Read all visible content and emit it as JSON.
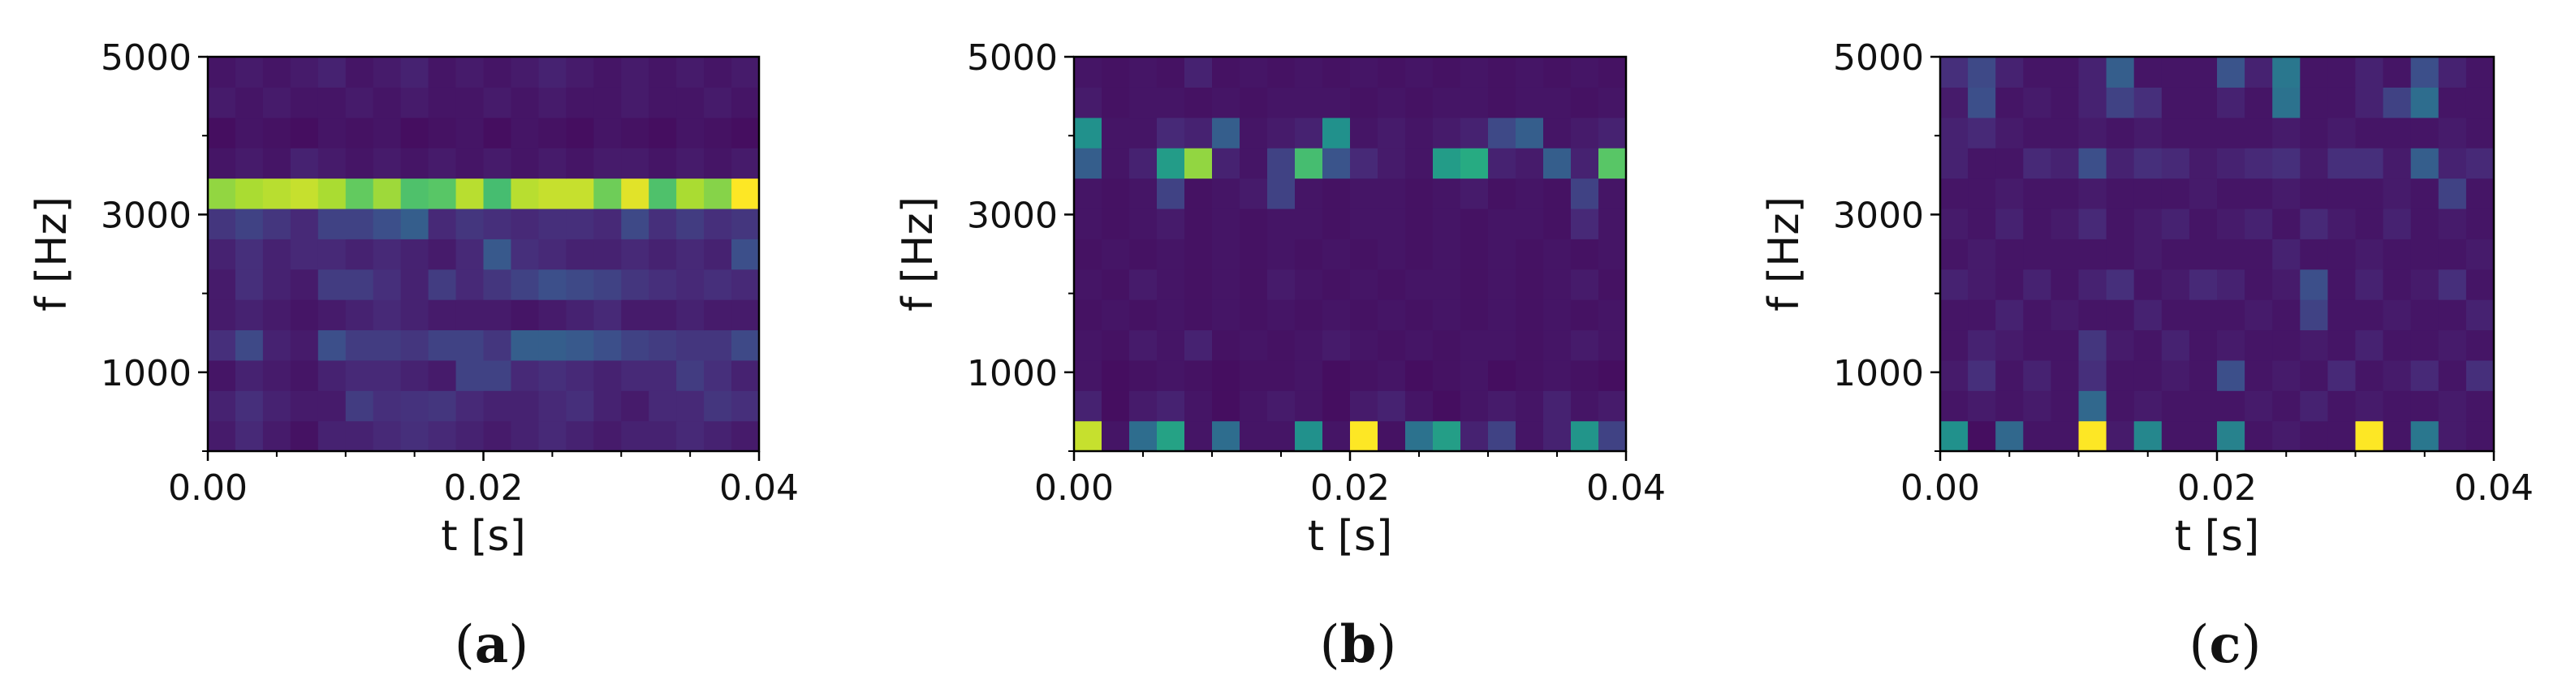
{
  "chart_data": [
    {
      "type": "heatmap",
      "caption": "a",
      "xlabel": "t [s]",
      "ylabel": "f [Hz]",
      "xlim": [
        0.0,
        0.04
      ],
      "ylim": [
        0,
        5000
      ],
      "xticks": [
        "0.00",
        "0.02",
        "0.04"
      ],
      "yticks": [
        "1000",
        "3000",
        "5000"
      ],
      "colormap": "viridis",
      "rows_low_to_high_freq": [
        [
          0.08,
          0.12,
          0.08,
          0.05,
          0.1,
          0.1,
          0.12,
          0.14,
          0.12,
          0.1,
          0.08,
          0.1,
          0.12,
          0.1,
          0.08,
          0.1,
          0.1,
          0.12,
          0.1,
          0.08
        ],
        [
          0.1,
          0.14,
          0.1,
          0.08,
          0.08,
          0.18,
          0.14,
          0.15,
          0.16,
          0.12,
          0.1,
          0.1,
          0.12,
          0.14,
          0.1,
          0.08,
          0.12,
          0.12,
          0.16,
          0.14
        ],
        [
          0.06,
          0.1,
          0.08,
          0.06,
          0.1,
          0.12,
          0.12,
          0.1,
          0.08,
          0.2,
          0.2,
          0.12,
          0.14,
          0.12,
          0.1,
          0.12,
          0.12,
          0.18,
          0.14,
          0.1
        ],
        [
          0.14,
          0.22,
          0.1,
          0.08,
          0.24,
          0.18,
          0.18,
          0.16,
          0.2,
          0.2,
          0.16,
          0.3,
          0.3,
          0.28,
          0.24,
          0.2,
          0.18,
          0.16,
          0.16,
          0.22
        ],
        [
          0.08,
          0.1,
          0.08,
          0.06,
          0.08,
          0.1,
          0.12,
          0.1,
          0.08,
          0.08,
          0.08,
          0.06,
          0.08,
          0.1,
          0.12,
          0.08,
          0.08,
          0.1,
          0.08,
          0.08
        ],
        [
          0.08,
          0.14,
          0.1,
          0.08,
          0.18,
          0.18,
          0.14,
          0.1,
          0.18,
          0.12,
          0.16,
          0.2,
          0.24,
          0.22,
          0.2,
          0.16,
          0.14,
          0.12,
          0.14,
          0.12
        ],
        [
          0.1,
          0.14,
          0.1,
          0.12,
          0.12,
          0.1,
          0.12,
          0.1,
          0.08,
          0.12,
          0.28,
          0.14,
          0.12,
          0.1,
          0.1,
          0.12,
          0.1,
          0.12,
          0.1,
          0.24
        ],
        [
          0.16,
          0.2,
          0.16,
          0.12,
          0.2,
          0.2,
          0.24,
          0.3,
          0.12,
          0.16,
          0.14,
          0.12,
          0.14,
          0.14,
          0.12,
          0.22,
          0.14,
          0.18,
          0.14,
          0.16
        ],
        [
          0.84,
          0.88,
          0.9,
          0.92,
          0.88,
          0.76,
          0.86,
          0.72,
          0.74,
          0.9,
          0.7,
          0.9,
          0.92,
          0.92,
          0.78,
          0.96,
          0.72,
          0.88,
          0.82,
          1.0
        ],
        [
          0.06,
          0.08,
          0.06,
          0.1,
          0.08,
          0.06,
          0.08,
          0.06,
          0.08,
          0.06,
          0.08,
          0.06,
          0.08,
          0.06,
          0.08,
          0.08,
          0.06,
          0.08,
          0.06,
          0.08
        ],
        [
          0.04,
          0.06,
          0.05,
          0.04,
          0.06,
          0.05,
          0.06,
          0.04,
          0.05,
          0.06,
          0.04,
          0.06,
          0.05,
          0.04,
          0.06,
          0.05,
          0.04,
          0.06,
          0.05,
          0.04
        ],
        [
          0.08,
          0.06,
          0.08,
          0.06,
          0.06,
          0.08,
          0.06,
          0.08,
          0.06,
          0.06,
          0.08,
          0.06,
          0.08,
          0.06,
          0.06,
          0.08,
          0.06,
          0.06,
          0.08,
          0.06
        ],
        [
          0.06,
          0.08,
          0.06,
          0.08,
          0.1,
          0.06,
          0.08,
          0.1,
          0.06,
          0.08,
          0.06,
          0.08,
          0.1,
          0.08,
          0.06,
          0.08,
          0.06,
          0.08,
          0.06,
          0.08
        ]
      ]
    },
    {
      "type": "heatmap",
      "caption": "b",
      "xlabel": "t [s]",
      "ylabel": "f [Hz]",
      "xlim": [
        0.0,
        0.04
      ],
      "ylim": [
        0,
        5000
      ],
      "xticks": [
        "0.00",
        "0.02",
        "0.04"
      ],
      "yticks": [
        "1000",
        "3000",
        "5000"
      ],
      "colormap": "viridis",
      "rows_low_to_high_freq": [
        [
          0.92,
          0.06,
          0.36,
          0.58,
          0.06,
          0.36,
          0.06,
          0.06,
          0.5,
          0.06,
          1.0,
          0.05,
          0.38,
          0.56,
          0.1,
          0.2,
          0.06,
          0.1,
          0.52,
          0.2
        ],
        [
          0.1,
          0.04,
          0.08,
          0.1,
          0.06,
          0.04,
          0.06,
          0.08,
          0.06,
          0.04,
          0.08,
          0.1,
          0.06,
          0.04,
          0.06,
          0.08,
          0.06,
          0.1,
          0.06,
          0.08
        ],
        [
          0.06,
          0.04,
          0.05,
          0.06,
          0.05,
          0.04,
          0.05,
          0.05,
          0.06,
          0.04,
          0.05,
          0.06,
          0.04,
          0.05,
          0.06,
          0.04,
          0.05,
          0.06,
          0.05,
          0.04
        ],
        [
          0.06,
          0.05,
          0.08,
          0.06,
          0.1,
          0.05,
          0.06,
          0.05,
          0.06,
          0.08,
          0.06,
          0.05,
          0.06,
          0.05,
          0.06,
          0.06,
          0.05,
          0.06,
          0.08,
          0.06
        ],
        [
          0.05,
          0.06,
          0.05,
          0.06,
          0.05,
          0.06,
          0.05,
          0.06,
          0.05,
          0.06,
          0.05,
          0.06,
          0.05,
          0.06,
          0.05,
          0.06,
          0.05,
          0.06,
          0.05,
          0.06
        ],
        [
          0.06,
          0.05,
          0.08,
          0.06,
          0.05,
          0.06,
          0.05,
          0.08,
          0.06,
          0.05,
          0.06,
          0.05,
          0.06,
          0.06,
          0.05,
          0.06,
          0.05,
          0.06,
          0.08,
          0.05
        ],
        [
          0.05,
          0.06,
          0.05,
          0.06,
          0.05,
          0.06,
          0.05,
          0.06,
          0.05,
          0.06,
          0.05,
          0.06,
          0.05,
          0.06,
          0.05,
          0.06,
          0.05,
          0.06,
          0.05,
          0.06
        ],
        [
          0.06,
          0.05,
          0.06,
          0.08,
          0.05,
          0.06,
          0.05,
          0.06,
          0.06,
          0.05,
          0.06,
          0.06,
          0.05,
          0.06,
          0.05,
          0.06,
          0.06,
          0.05,
          0.12,
          0.06
        ],
        [
          0.06,
          0.05,
          0.06,
          0.2,
          0.05,
          0.06,
          0.08,
          0.2,
          0.06,
          0.05,
          0.06,
          0.06,
          0.05,
          0.06,
          0.08,
          0.05,
          0.06,
          0.05,
          0.2,
          0.06
        ],
        [
          0.3,
          0.06,
          0.1,
          0.55,
          0.84,
          0.1,
          0.06,
          0.2,
          0.7,
          0.26,
          0.12,
          0.08,
          0.06,
          0.55,
          0.62,
          0.1,
          0.08,
          0.3,
          0.1,
          0.74
        ],
        [
          0.5,
          0.06,
          0.06,
          0.12,
          0.1,
          0.3,
          0.06,
          0.08,
          0.1,
          0.5,
          0.06,
          0.08,
          0.06,
          0.08,
          0.1,
          0.22,
          0.3,
          0.06,
          0.08,
          0.1
        ],
        [
          0.08,
          0.05,
          0.06,
          0.06,
          0.05,
          0.06,
          0.05,
          0.06,
          0.06,
          0.06,
          0.05,
          0.06,
          0.05,
          0.06,
          0.06,
          0.05,
          0.06,
          0.06,
          0.05,
          0.06
        ],
        [
          0.06,
          0.05,
          0.06,
          0.05,
          0.1,
          0.05,
          0.06,
          0.05,
          0.06,
          0.05,
          0.06,
          0.05,
          0.06,
          0.05,
          0.06,
          0.05,
          0.06,
          0.05,
          0.06,
          0.05
        ]
      ]
    },
    {
      "type": "heatmap",
      "caption": "c",
      "xlabel": "t [s]",
      "ylabel": "f [Hz]",
      "xlim": [
        0.0,
        0.04
      ],
      "ylim": [
        0,
        5000
      ],
      "xticks": [
        "0.00",
        "0.02",
        "0.04"
      ],
      "yticks": [
        "1000",
        "3000",
        "5000"
      ],
      "colormap": "viridis",
      "rows_low_to_high_freq": [
        [
          0.5,
          0.04,
          0.34,
          0.06,
          0.06,
          1.0,
          0.08,
          0.46,
          0.06,
          0.06,
          0.44,
          0.06,
          0.08,
          0.06,
          0.06,
          1.0,
          0.06,
          0.4,
          0.08,
          0.06
        ],
        [
          0.06,
          0.08,
          0.06,
          0.08,
          0.06,
          0.34,
          0.06,
          0.08,
          0.06,
          0.06,
          0.06,
          0.08,
          0.06,
          0.1,
          0.06,
          0.08,
          0.06,
          0.06,
          0.08,
          0.06
        ],
        [
          0.08,
          0.14,
          0.06,
          0.1,
          0.06,
          0.14,
          0.06,
          0.06,
          0.08,
          0.06,
          0.24,
          0.06,
          0.08,
          0.06,
          0.12,
          0.06,
          0.08,
          0.12,
          0.06,
          0.14
        ],
        [
          0.06,
          0.1,
          0.08,
          0.06,
          0.06,
          0.16,
          0.08,
          0.06,
          0.1,
          0.06,
          0.08,
          0.06,
          0.06,
          0.08,
          0.06,
          0.1,
          0.06,
          0.06,
          0.08,
          0.06
        ],
        [
          0.06,
          0.06,
          0.1,
          0.06,
          0.08,
          0.06,
          0.06,
          0.1,
          0.06,
          0.06,
          0.06,
          0.08,
          0.06,
          0.2,
          0.06,
          0.06,
          0.08,
          0.06,
          0.06,
          0.1
        ],
        [
          0.1,
          0.08,
          0.06,
          0.1,
          0.06,
          0.1,
          0.14,
          0.06,
          0.08,
          0.12,
          0.1,
          0.06,
          0.08,
          0.24,
          0.06,
          0.1,
          0.06,
          0.08,
          0.14,
          0.06
        ],
        [
          0.06,
          0.08,
          0.06,
          0.06,
          0.06,
          0.06,
          0.06,
          0.08,
          0.06,
          0.06,
          0.06,
          0.06,
          0.1,
          0.06,
          0.06,
          0.08,
          0.06,
          0.06,
          0.06,
          0.08
        ],
        [
          0.08,
          0.06,
          0.1,
          0.06,
          0.08,
          0.12,
          0.06,
          0.08,
          0.1,
          0.06,
          0.08,
          0.1,
          0.06,
          0.12,
          0.08,
          0.06,
          0.1,
          0.06,
          0.08,
          0.06
        ],
        [
          0.06,
          0.06,
          0.08,
          0.06,
          0.06,
          0.08,
          0.06,
          0.06,
          0.06,
          0.08,
          0.06,
          0.06,
          0.08,
          0.06,
          0.06,
          0.06,
          0.08,
          0.06,
          0.2,
          0.06
        ],
        [
          0.1,
          0.06,
          0.06,
          0.12,
          0.1,
          0.24,
          0.1,
          0.14,
          0.12,
          0.08,
          0.1,
          0.12,
          0.14,
          0.08,
          0.14,
          0.14,
          0.08,
          0.3,
          0.1,
          0.12
        ],
        [
          0.1,
          0.12,
          0.08,
          0.06,
          0.06,
          0.08,
          0.06,
          0.08,
          0.06,
          0.06,
          0.06,
          0.06,
          0.08,
          0.06,
          0.08,
          0.06,
          0.06,
          0.06,
          0.08,
          0.06
        ],
        [
          0.08,
          0.24,
          0.06,
          0.08,
          0.06,
          0.1,
          0.2,
          0.14,
          0.06,
          0.06,
          0.1,
          0.06,
          0.38,
          0.06,
          0.06,
          0.1,
          0.2,
          0.36,
          0.06,
          0.06
        ],
        [
          0.14,
          0.22,
          0.1,
          0.06,
          0.06,
          0.1,
          0.3,
          0.06,
          0.06,
          0.06,
          0.26,
          0.1,
          0.4,
          0.06,
          0.06,
          0.1,
          0.06,
          0.24,
          0.1,
          0.06
        ]
      ]
    }
  ]
}
